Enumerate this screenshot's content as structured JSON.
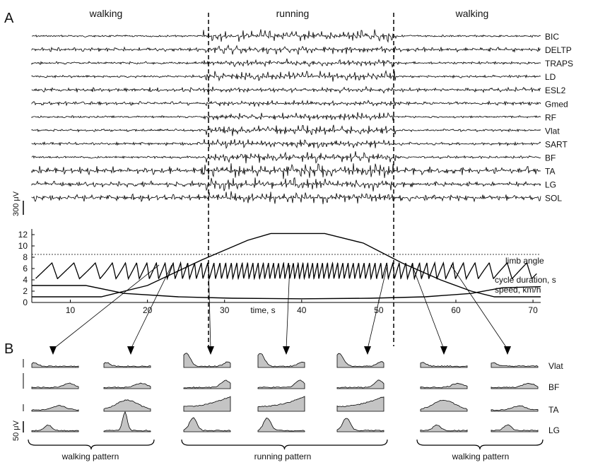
{
  "panel_labels": {
    "a": "A",
    "b": "B"
  },
  "phase_labels": [
    "walking",
    "running",
    "walking"
  ],
  "emg_channels": [
    "BIC",
    "DELTP",
    "TRAPS",
    "LD",
    "ESL2",
    "Gmed",
    "RF",
    "Vlat",
    "SART",
    "BF",
    "TA",
    "LG",
    "SOL"
  ],
  "emg_scale_label": "300 μV",
  "kinematics": {
    "xlabel": "time, s",
    "xticks": [
      10,
      20,
      30,
      40,
      50,
      60,
      70
    ],
    "yticks": [
      0,
      2,
      4,
      6,
      8,
      10,
      12
    ],
    "series_labels": {
      "limb": "limb angle",
      "cycle": "cycle duration, s",
      "speed": "speed, km/h"
    }
  },
  "panel_b": {
    "rows": [
      "Vlat",
      "BF",
      "TA",
      "LG"
    ],
    "scale_label": "50 μV",
    "group_labels": [
      "walking pattern",
      "running pattern",
      "walking pattern"
    ]
  },
  "chart_data": [
    {
      "type": "line",
      "title": "",
      "xlabel": "time, s",
      "ylabel": "",
      "xlim": [
        5,
        71
      ],
      "ylim": [
        0,
        13
      ],
      "threshold_y": 8.5,
      "phase_boundaries": [
        27.5,
        51.8
      ],
      "series": [
        {
          "name": "speed, km/h",
          "x": [
            5,
            14,
            20,
            27,
            33,
            36,
            43,
            48,
            53,
            58,
            62,
            65,
            71
          ],
          "y": [
            1.0,
            1.0,
            3.0,
            7.5,
            11.0,
            12.2,
            12.2,
            10.5,
            7.0,
            4.0,
            2.0,
            1.0,
            1.0
          ]
        },
        {
          "name": "cycle duration, s",
          "x": [
            5,
            12,
            17,
            24,
            31,
            40,
            49,
            56,
            62,
            66,
            71
          ],
          "y": [
            3.0,
            3.0,
            1.6,
            1.0,
            0.75,
            0.65,
            0.75,
            1.0,
            1.6,
            2.6,
            2.8
          ]
        },
        {
          "name": "limb angle",
          "oscillation": {
            "min": 4.2,
            "max": 7.0
          }
        }
      ],
      "grid": false,
      "legend": "labels-right"
    },
    {
      "type": "area",
      "title": "",
      "rows": [
        "Vlat",
        "BF",
        "TA",
        "LG"
      ],
      "groups": [
        "walking pattern",
        "running pattern",
        "walking pattern"
      ],
      "columns": 7
    }
  ]
}
